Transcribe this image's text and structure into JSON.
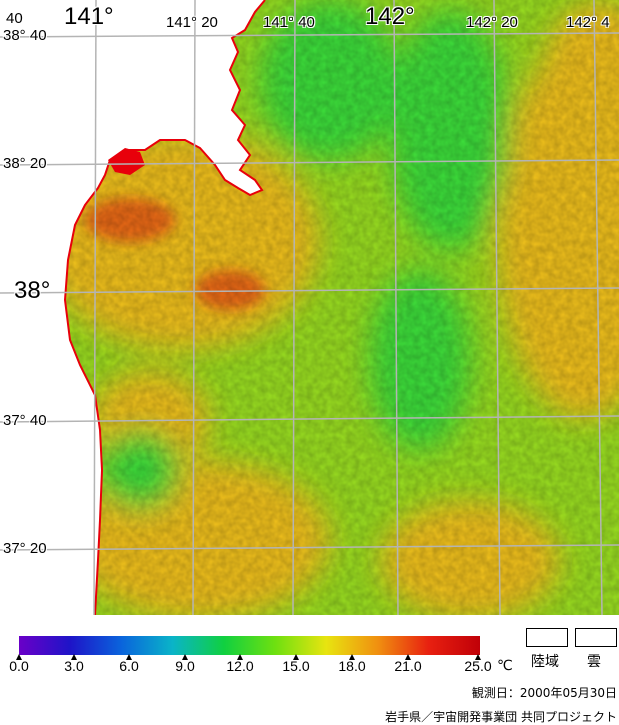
{
  "map": {
    "colors": {
      "sea_base": "#9be021",
      "warm": "#f2c21d",
      "hot": "#ec6a18",
      "cool": "#3ee03a",
      "land": "#ffffff",
      "coast": "#e8000b",
      "grid": "#b4b4b4"
    },
    "lon_labels_small": [
      "141° 20",
      "141° 40",
      "142° 20",
      "142° 4"
    ],
    "lon_labels_big": [
      "141°",
      "142°"
    ],
    "lat_labels_small": [
      "38° 40",
      "38° 20",
      "37° 40",
      "37° 20"
    ],
    "lat_labels_big": [
      "38°"
    ],
    "corner_fragment": "40"
  },
  "legend": {
    "ticks": [
      "0.0",
      "3.0",
      "6.0",
      "9.0",
      "12.0",
      "15.0",
      "18.0",
      "21.0",
      "25.0"
    ],
    "unit": "℃",
    "gradient_stops": [
      "#6a00c8",
      "#1e14c8",
      "#0a64dc",
      "#0ab4c8",
      "#10d040",
      "#6ee010",
      "#e8e410",
      "#f09010",
      "#e82010",
      "#c00008"
    ],
    "key_land": "陸域",
    "key_cloud": "雲",
    "observation_date": "観測日：2000年05月30日",
    "credit": "岩手県／宇宙開発事業団 共同プロジェクト"
  }
}
